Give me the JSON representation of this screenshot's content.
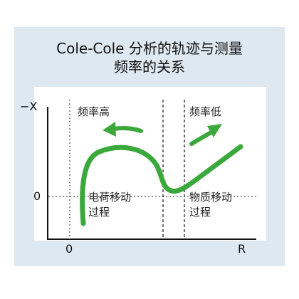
{
  "title": {
    "line1": "Cole-Cole 分析的轨迹与测量",
    "line2": "频率的关系"
  },
  "axes": {
    "y_label": "−X",
    "y_zero": "0",
    "x_zero": "0",
    "x_label": "R"
  },
  "regions": {
    "high_freq": "频率高",
    "low_freq": "频率低",
    "charge_transfer_line1": "电荷移动",
    "charge_transfer_line2": "过程",
    "mass_transfer_line1": "物质移动",
    "mass_transfer_line2": "过程"
  },
  "colors": {
    "curve": "#3aa83a",
    "panel": "#dde8f1"
  }
}
